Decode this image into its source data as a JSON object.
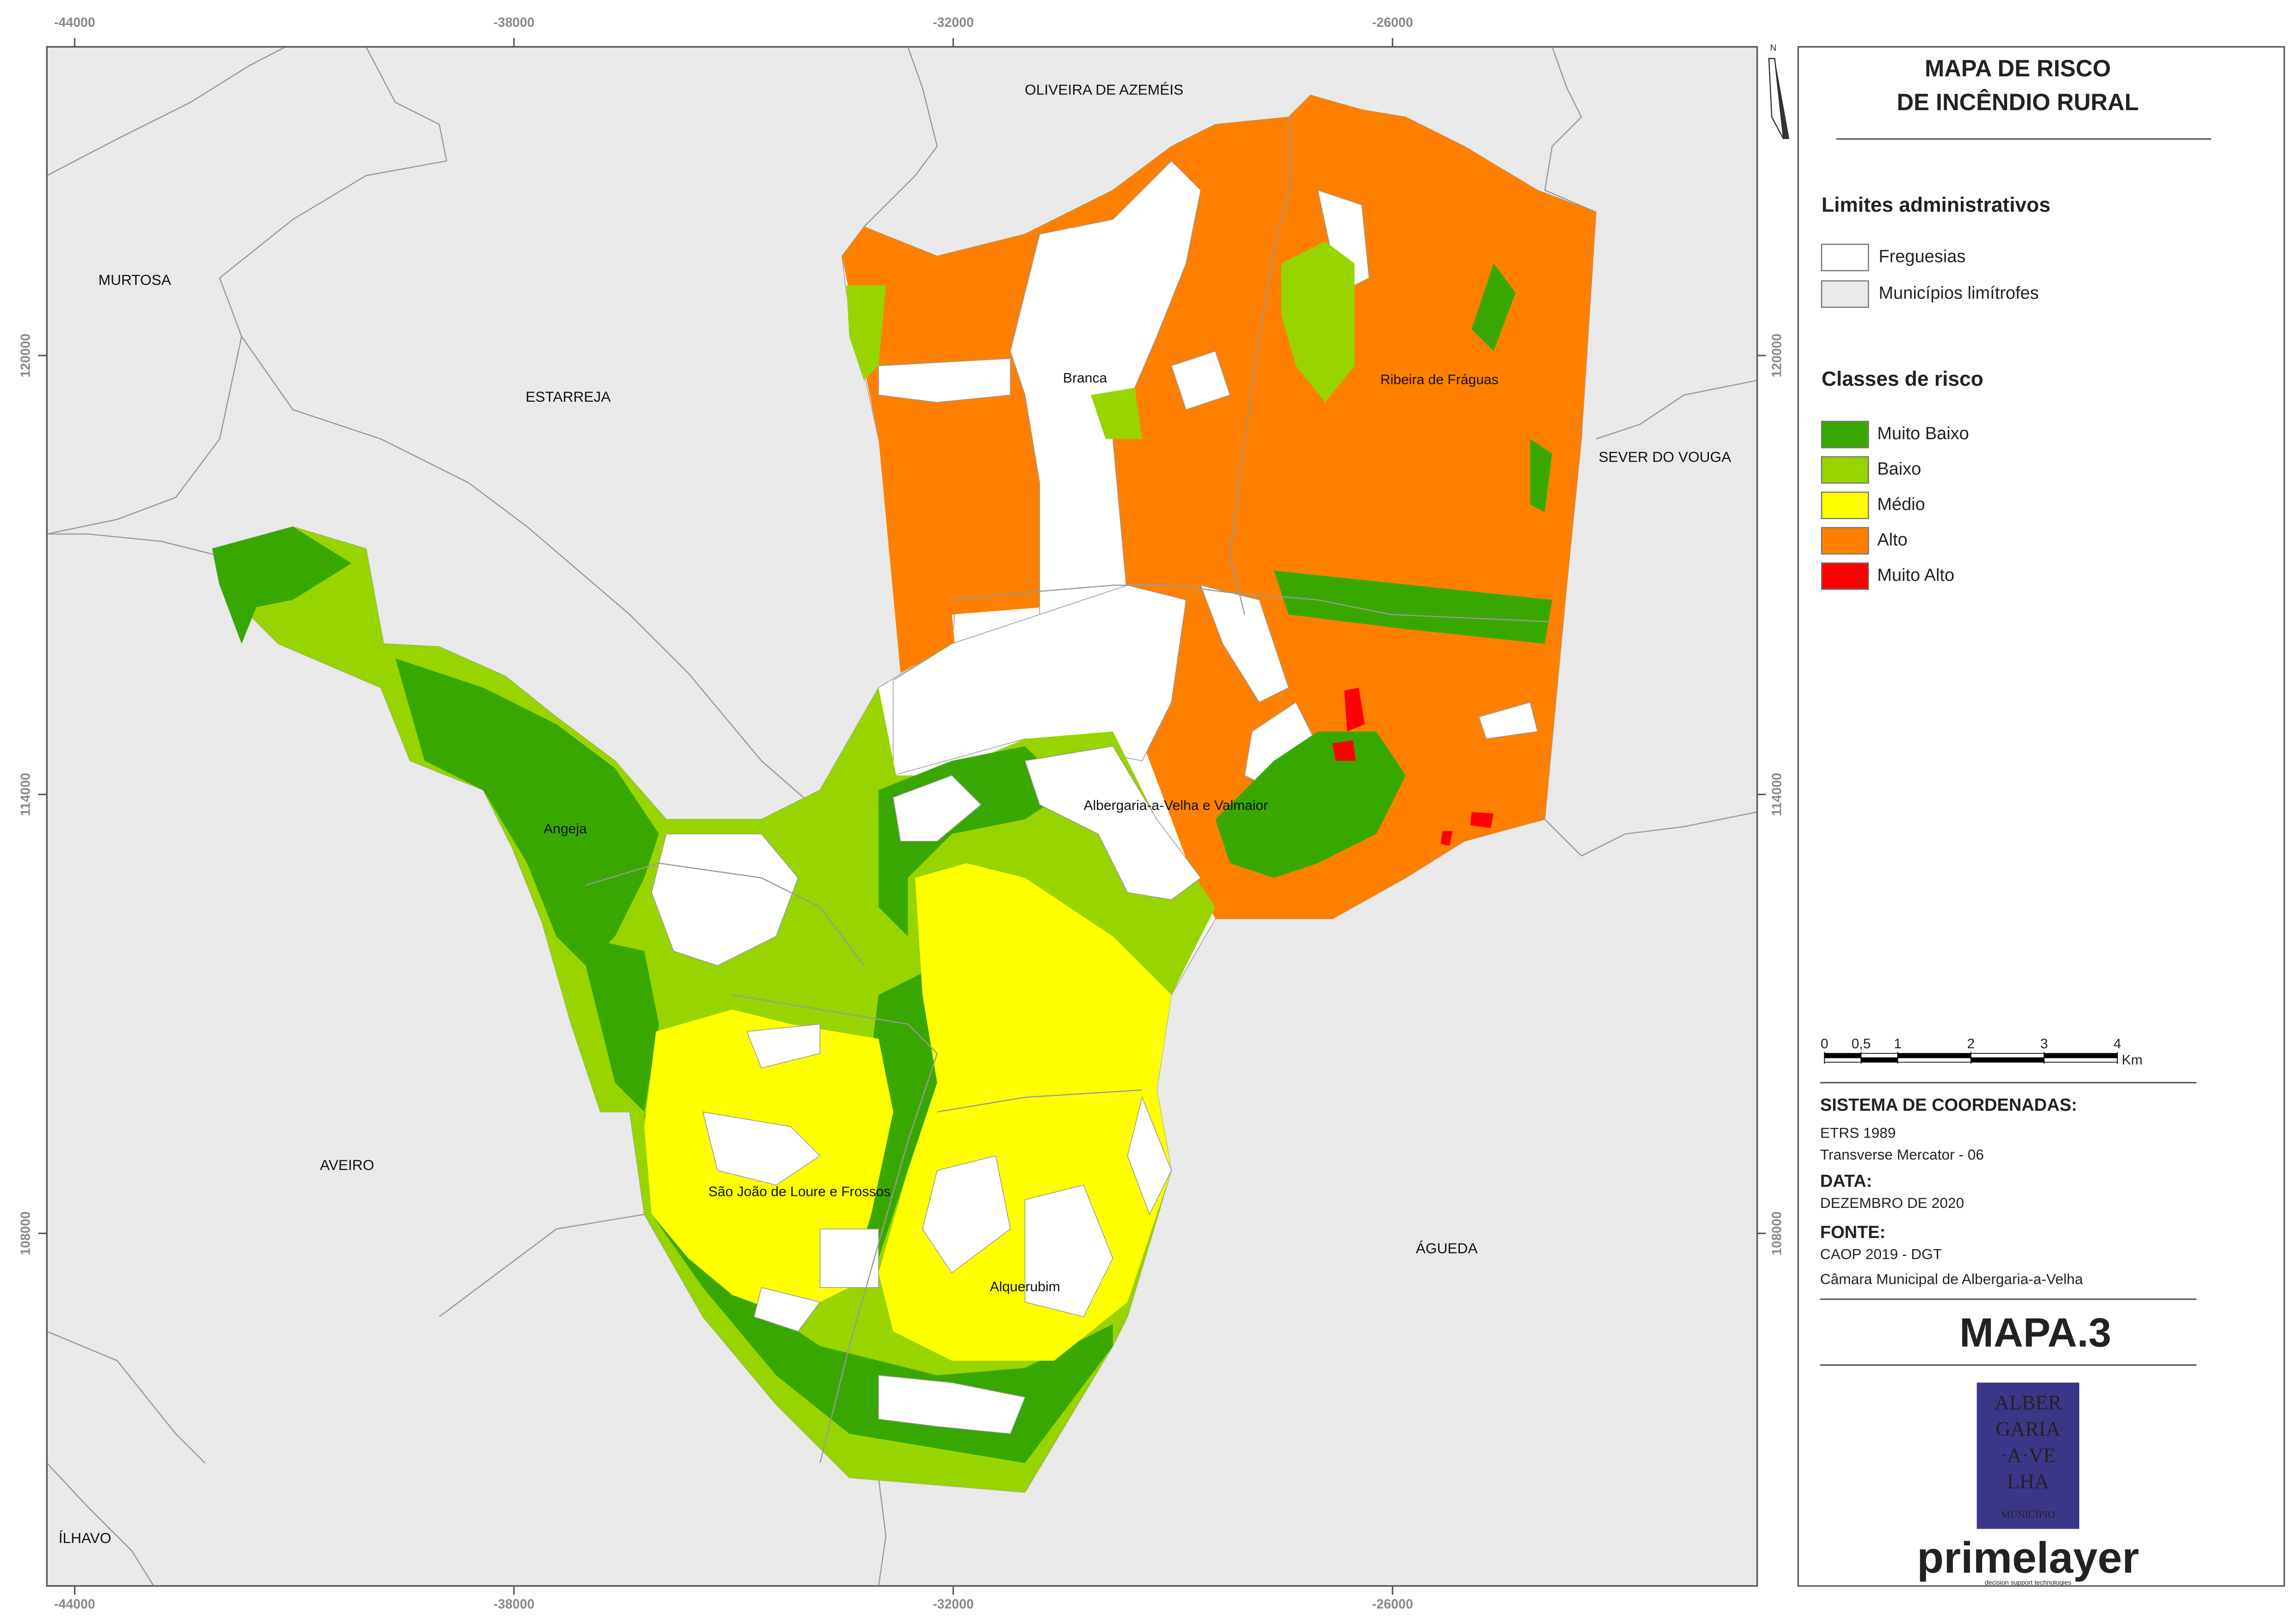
{
  "header": {
    "title_lines": [
      "MAPA DE RISCO",
      "DE INCÊNDIO RURAL"
    ]
  },
  "legend": {
    "admin_heading": "Limites administrativos",
    "admin_items": [
      {
        "label": "Freguesias",
        "color": "#ffffff"
      },
      {
        "label": "Municípios limítrofes",
        "color": "#e8e9e8"
      }
    ],
    "risk_heading": "Classes de risco",
    "risk_items": [
      {
        "label": "Muito Baixo",
        "color": "#38a800"
      },
      {
        "label": "Baixo",
        "color": "#98d400"
      },
      {
        "label": "Médio",
        "color": "#ffff00"
      },
      {
        "label": "Alto",
        "color": "#ff8000"
      },
      {
        "label": "Muito Alto",
        "color": "#ff0000"
      }
    ]
  },
  "map": {
    "x_ticks": [
      -44000,
      -38000,
      -32000,
      -26000
    ],
    "y_ticks": [
      120000,
      114000,
      108000
    ],
    "neighbors": [
      "MURTOSA",
      "ESTARREJA",
      "OLIVEIRA DE AZEMÉIS",
      "SEVER DO VOUGA",
      "AVEIRO",
      "ÁGUEDA",
      "ÍLHAVO"
    ],
    "parishes": [
      "Branca",
      "Ribeira de Fráguas",
      "Angeja",
      "Albergaria-a-Velha e Valmaior",
      "São João de Loure e Frossos",
      "Alquerubim"
    ],
    "north": "N"
  },
  "scale_bar": {
    "ticks": [
      0,
      {
        "value": 0.5,
        "label": "0,5"
      },
      1,
      2,
      3,
      4
    ],
    "unit": "Km"
  },
  "info": {
    "crs_heading": "SISTEMA DE COORDENADAS:",
    "crs_lines": [
      "ETRS 1989",
      "Transverse Mercator - 06"
    ],
    "date_heading": "DATA:",
    "date": "DEZEMBRO DE 2020",
    "source_heading": "FONTE:",
    "source_lines": [
      "CAOP 2019 - DGT",
      "Câmara Municipal de Albergaria-a-Velha"
    ]
  },
  "map_id": "MAPA.3",
  "logos": {
    "municipality_lines": [
      "ALBER",
      "GARIA",
      "·A·VE",
      "LHA"
    ],
    "municipality_caption": "MUNICÍPIO",
    "company": "primelayer",
    "company_tagline": "decision support technologies"
  }
}
